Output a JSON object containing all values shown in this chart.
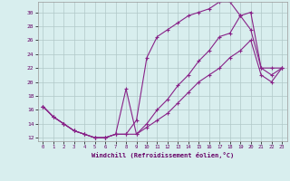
{
  "xlabel": "Windchill (Refroidissement éolien,°C)",
  "background_color": "#d8eeee",
  "grid_color": "#b0c8c8",
  "line_color": "#882288",
  "xlim": [
    -0.5,
    23.5
  ],
  "ylim": [
    11.5,
    31.5
  ],
  "xticks": [
    0,
    1,
    2,
    3,
    4,
    5,
    6,
    7,
    8,
    9,
    10,
    11,
    12,
    13,
    14,
    15,
    16,
    17,
    18,
    19,
    20,
    21,
    22,
    23
  ],
  "yticks": [
    12,
    14,
    16,
    18,
    20,
    22,
    24,
    26,
    28,
    30
  ],
  "series": [
    {
      "x": [
        0,
        1,
        2,
        3,
        4,
        5,
        6,
        7,
        8,
        9,
        10,
        11,
        12,
        13,
        14,
        15,
        16,
        17,
        18,
        19,
        20,
        21,
        22,
        23
      ],
      "y": [
        16.5,
        15.0,
        14.0,
        13.0,
        12.5,
        12.0,
        12.0,
        12.5,
        12.5,
        14.5,
        23.5,
        26.5,
        27.5,
        28.5,
        29.5,
        30.0,
        30.5,
        31.5,
        31.5,
        29.5,
        27.5,
        22.0,
        22.0,
        22.0
      ]
    },
    {
      "x": [
        0,
        1,
        2,
        3,
        4,
        5,
        6,
        7,
        8,
        9,
        10,
        11,
        12,
        13,
        14,
        15,
        16,
        17,
        18,
        19,
        20,
        21,
        22,
        23
      ],
      "y": [
        16.5,
        15.0,
        14.0,
        13.0,
        12.5,
        12.0,
        12.0,
        12.5,
        12.5,
        12.5,
        14.0,
        16.0,
        17.5,
        19.5,
        21.0,
        23.0,
        24.5,
        26.5,
        27.0,
        29.5,
        30.0,
        22.0,
        21.0,
        22.0
      ]
    },
    {
      "x": [
        0,
        1,
        2,
        3,
        4,
        5,
        6,
        7,
        8,
        9,
        10,
        11,
        12,
        13,
        14,
        15,
        16,
        17,
        18,
        19,
        20,
        21,
        22,
        23
      ],
      "y": [
        16.5,
        15.0,
        14.0,
        13.0,
        12.5,
        12.0,
        12.0,
        12.5,
        19.0,
        12.5,
        13.5,
        14.5,
        15.5,
        17.0,
        18.5,
        20.0,
        21.0,
        22.0,
        23.5,
        24.5,
        26.0,
        21.0,
        20.0,
        22.0
      ]
    }
  ]
}
